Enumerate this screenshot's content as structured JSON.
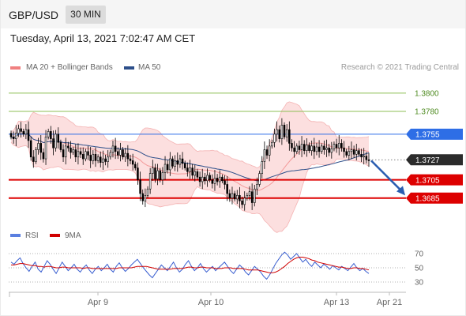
{
  "header": {
    "pair": "GBP/USD",
    "timeframe": "30 MIN"
  },
  "timestamp": "Tuesday, April 13, 2021 7:02:47 AM CET",
  "legend": {
    "bollinger_label": "MA 20 + Bollinger Bands",
    "ma50_label": "MA 50",
    "rsi_label": "RSI",
    "ma9_label": "9MA",
    "credit": "Research © 2021 Trading Central"
  },
  "colors": {
    "candle_up": "#ffffff",
    "candle_down": "#000000",
    "bollinger": "#f08080",
    "ma50": "#2d4f8a",
    "support": "#dd0000",
    "resistance_green": "#8cbf55",
    "pivot": "#2e6ee6",
    "current": "#2b2b2b",
    "rsi": "#3a5fd0",
    "rsi_ma": "#d00000"
  },
  "chart_data": [
    {
      "type": "candlestick",
      "ylim": [
        1.3658,
        1.3818
      ],
      "x_ticks": [
        "Apr 9",
        "Apr 10",
        "Apr 13",
        "Apr 21"
      ],
      "levels": [
        {
          "value": 1.38,
          "label": "1.3800",
          "style": "green"
        },
        {
          "value": 1.378,
          "label": "1.3780",
          "style": "green"
        },
        {
          "value": 1.3755,
          "label": "1.3755",
          "style": "pivot"
        },
        {
          "value": 1.3727,
          "label": "1.3727",
          "style": "current"
        },
        {
          "value": 1.3705,
          "label": "1.3705",
          "style": "support"
        },
        {
          "value": 1.3685,
          "label": "1.3685",
          "style": "support"
        }
      ],
      "forecast_arrow": {
        "from": 1.3726,
        "to": 1.3688,
        "direction": "down"
      },
      "closes": [
        1.3752,
        1.375,
        1.3756,
        1.3761,
        1.3758,
        1.3755,
        1.376,
        1.3748,
        1.373,
        1.3725,
        1.3738,
        1.3745,
        1.3735,
        1.3728,
        1.3752,
        1.3758,
        1.375,
        1.374,
        1.3755,
        1.3746,
        1.3738,
        1.373,
        1.3742,
        1.374,
        1.3735,
        1.3738,
        1.373,
        1.3736,
        1.3733,
        1.3728,
        1.3736,
        1.3732,
        1.3726,
        1.3733,
        1.3726,
        1.373,
        1.3724,
        1.3728,
        1.3725,
        1.373,
        1.3735,
        1.3742,
        1.3736,
        1.3732,
        1.3738,
        1.373,
        1.3734,
        1.3728,
        1.3726,
        1.3722,
        1.3718,
        1.3705,
        1.369,
        1.3682,
        1.3688,
        1.3695,
        1.3712,
        1.3718,
        1.3706,
        1.3715,
        1.3705,
        1.3713,
        1.3722,
        1.3716,
        1.3728,
        1.372,
        1.3726,
        1.3722,
        1.3728,
        1.3723,
        1.3718,
        1.3714,
        1.3718,
        1.371,
        1.3714,
        1.3708,
        1.3703,
        1.3708,
        1.3704,
        1.371,
        1.3705,
        1.3701,
        1.3707,
        1.3703,
        1.3708,
        1.3704,
        1.37,
        1.369,
        1.3685,
        1.369,
        1.3684,
        1.3688,
        1.3682,
        1.3678,
        1.3685,
        1.3688,
        1.3692,
        1.368,
        1.3695,
        1.37,
        1.3712,
        1.3725,
        1.3738,
        1.3732,
        1.3742,
        1.3746,
        1.3755,
        1.376,
        1.375,
        1.3765,
        1.3752,
        1.376,
        1.3745,
        1.374,
        1.3736,
        1.3742,
        1.3738,
        1.3744,
        1.3737,
        1.3743,
        1.3737,
        1.3742,
        1.3736,
        1.3741,
        1.3736,
        1.3742,
        1.3738,
        1.374,
        1.3735,
        1.3739,
        1.3744,
        1.374,
        1.3745,
        1.374,
        1.3736,
        1.3732,
        1.3736,
        1.3738,
        1.3733,
        1.3737,
        1.3733,
        1.373,
        1.3731,
        1.3727,
        1.3726
      ]
    },
    {
      "type": "line",
      "title": "RSI",
      "ylim": [
        20,
        80
      ],
      "y_ticks": [
        70,
        50,
        30
      ],
      "rsi": [
        58,
        55,
        60,
        64,
        56,
        50,
        45,
        52,
        58,
        48,
        44,
        52,
        60,
        55,
        48,
        42,
        50,
        58,
        52,
        46,
        50,
        55,
        48,
        44,
        50,
        54,
        47,
        42,
        48,
        52,
        46,
        50,
        55,
        48,
        44,
        52,
        57,
        50,
        45,
        49,
        54,
        58,
        62,
        56,
        50,
        45,
        40,
        36,
        42,
        48,
        54,
        50,
        46,
        52,
        58,
        50,
        44,
        48,
        55,
        60,
        52,
        46,
        50,
        56,
        49,
        44,
        48,
        52,
        46,
        50,
        54,
        58,
        52,
        46,
        42,
        48,
        54,
        50,
        44,
        40,
        46,
        52,
        48,
        44,
        38,
        34,
        40,
        48,
        56,
        62,
        68,
        72,
        68,
        62,
        66,
        70,
        64,
        58,
        62,
        56,
        52,
        58,
        54,
        50,
        55,
        52,
        48,
        53,
        50,
        47,
        52,
        49,
        46,
        51,
        56,
        50,
        46,
        49,
        45,
        42
      ],
      "ma9": [
        54,
        54,
        55,
        56,
        56,
        55,
        54,
        53,
        53,
        52,
        52,
        51,
        52,
        52,
        51,
        50,
        50,
        51,
        51,
        50,
        50,
        50,
        50,
        50,
        49,
        50,
        50,
        49,
        49,
        49,
        49,
        49,
        49,
        49,
        49,
        49,
        50,
        50,
        50,
        50,
        50,
        51,
        52,
        52,
        52,
        52,
        51,
        50,
        49,
        48,
        48,
        48,
        48,
        48,
        49,
        49,
        49,
        49,
        50,
        51,
        51,
        50,
        50,
        51,
        51,
        50,
        50,
        50,
        49,
        49,
        49,
        50,
        50,
        50,
        49,
        49,
        49,
        49,
        48,
        47,
        47,
        47,
        47,
        46,
        45,
        44,
        43,
        43,
        44,
        46,
        49,
        52,
        56,
        59,
        62,
        64,
        65,
        65,
        64,
        63,
        61,
        60,
        58,
        57,
        56,
        55,
        54,
        53,
        52,
        51,
        51,
        50,
        49,
        49,
        50,
        50,
        49,
        49,
        48,
        47
      ]
    }
  ]
}
